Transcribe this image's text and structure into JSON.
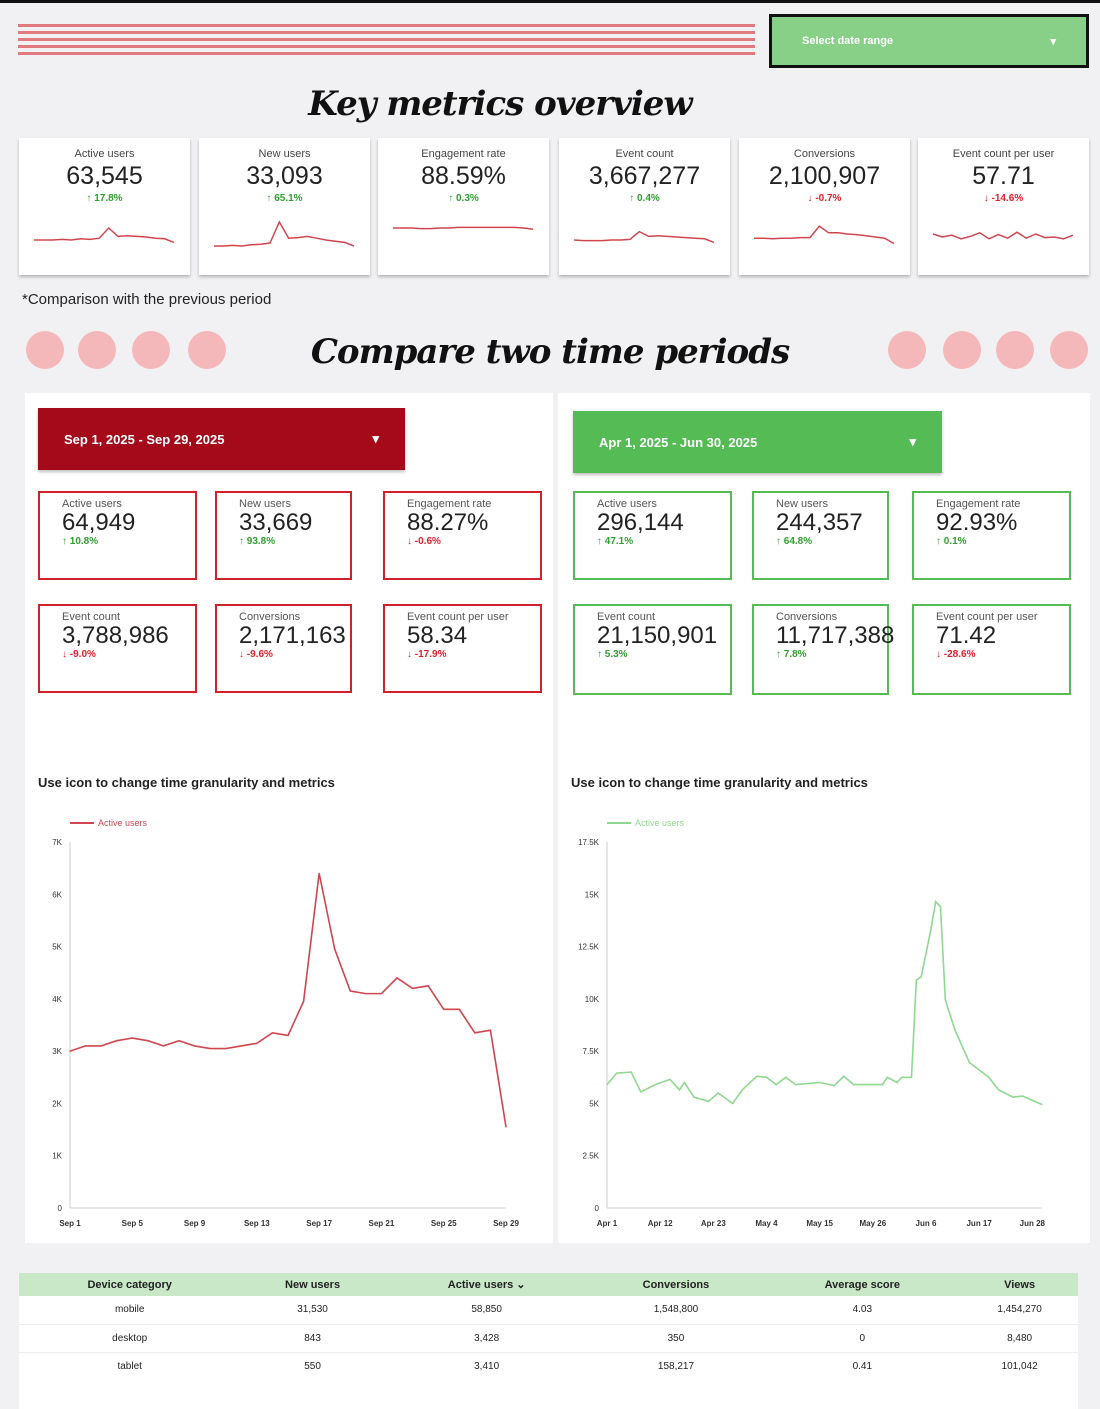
{
  "header": {
    "date_range_label": "Select date range",
    "title": "Key metrics overview",
    "note": "*Comparison with the previous period",
    "compare_title": "Compare two time periods"
  },
  "colors": {
    "red": "#a50a1b",
    "green": "#55bb55",
    "up": "#2e9e2e",
    "down": "#e0202a"
  },
  "kpis": [
    {
      "label": "Active users",
      "value": "63,545",
      "delta": "↑ 17.8%",
      "dir": "up",
      "spark": [
        3,
        3,
        3,
        3.1,
        3,
        3.2,
        3.1,
        3.3,
        5,
        3.6,
        3.7,
        3.6,
        3.5,
        3.3,
        3.2,
        2.6
      ]
    },
    {
      "label": "New users",
      "value": "33,093",
      "delta": "↑ 65.1%",
      "dir": "up",
      "spark": [
        2,
        2,
        2.1,
        2,
        2.2,
        2.3,
        2.5,
        6,
        3.3,
        3.4,
        3.6,
        3.3,
        3,
        2.8,
        2.6,
        2
      ]
    },
    {
      "label": "Engagement rate",
      "value": "88.59%",
      "delta": "↑ 0.3%",
      "dir": "up",
      "spark": [
        5,
        5,
        5,
        4.9,
        4.9,
        5,
        5,
        5.1,
        5.1,
        5.1,
        5.1,
        5.1,
        5.1,
        5.1,
        5,
        4.8
      ]
    },
    {
      "label": "Event count",
      "value": "3,667,277",
      "delta": "↑ 0.4%",
      "dir": "up",
      "spark": [
        3,
        2.9,
        2.9,
        2.9,
        3,
        3,
        3.1,
        4.4,
        3.6,
        3.7,
        3.6,
        3.5,
        3.4,
        3.3,
        3.2,
        2.6
      ]
    },
    {
      "label": "Conversions",
      "value": "2,100,907",
      "delta": "↓ -0.7%",
      "dir": "down",
      "spark": [
        3.3,
        3.3,
        3.2,
        3.3,
        3.3,
        3.4,
        3.4,
        5.3,
        4.2,
        4.2,
        4,
        3.9,
        3.7,
        3.5,
        3.3,
        2.4
      ]
    },
    {
      "label": "Event count per user",
      "value": "57.71",
      "delta": "↓ -14.6%",
      "dir": "down",
      "spark": [
        4,
        3.5,
        3.8,
        3.2,
        3.6,
        4.2,
        3.2,
        3.9,
        3.3,
        4.3,
        3.3,
        4,
        3.4,
        3.5,
        3.2,
        3.8
      ]
    }
  ],
  "periods": [
    {
      "range": "Sep 1, 2025 - Sep 29, 2025",
      "theme": "red",
      "metrics": [
        {
          "label": "Active users",
          "value": "64,949",
          "delta": "↑ 10.8%",
          "dir": "up"
        },
        {
          "label": "New users",
          "value": "33,669",
          "delta": "↑ 93.8%",
          "dir": "up"
        },
        {
          "label": "Engagement rate",
          "value": "88.27%",
          "delta": "↓ -0.6%",
          "dir": "down"
        },
        {
          "label": "Event count",
          "value": "3,788,986",
          "delta": "↓ -9.0%",
          "dir": "down"
        },
        {
          "label": "Conversions",
          "value": "2,171,163",
          "delta": "↓ -9.6%",
          "dir": "down"
        },
        {
          "label": "Event count per user",
          "value": "58.34",
          "delta": "↓ -17.9%",
          "dir": "down"
        }
      ],
      "chart_hint": "Use icon to change time granularity and metrics"
    },
    {
      "range": "Apr 1, 2025 - Jun 30, 2025",
      "theme": "green",
      "metrics": [
        {
          "label": "Active users",
          "value": "296,144",
          "delta": "↑ 47.1%",
          "dir": "up"
        },
        {
          "label": "New users",
          "value": "244,357",
          "delta": "↑ 64.8%",
          "dir": "up"
        },
        {
          "label": "Engagement rate",
          "value": "92.93%",
          "delta": "↑ 0.1%",
          "dir": "up"
        },
        {
          "label": "Event count",
          "value": "21,150,901",
          "delta": "↑ 5.3%",
          "dir": "up"
        },
        {
          "label": "Conversions",
          "value": "11,717,388",
          "delta": "↑ 7.8%",
          "dir": "up"
        },
        {
          "label": "Event count per user",
          "value": "71.42",
          "delta": "↓ -28.6%",
          "dir": "down"
        }
      ],
      "chart_hint": "Use icon to change time granularity and metrics"
    }
  ],
  "chart_data": [
    {
      "type": "line",
      "series": [
        {
          "name": "Active users",
          "color": "#d0464e",
          "points": [
            [
              "Sep 1",
              3000
            ],
            [
              "Sep 2",
              3100
            ],
            [
              "Sep 3",
              3100
            ],
            [
              "Sep 4",
              3200
            ],
            [
              "Sep 5",
              3250
            ],
            [
              "Sep 6",
              3200
            ],
            [
              "Sep 7",
              3100
            ],
            [
              "Sep 8",
              3200
            ],
            [
              "Sep 9",
              3100
            ],
            [
              "Sep 10",
              3050
            ],
            [
              "Sep 11",
              3050
            ],
            [
              "Sep 12",
              3100
            ],
            [
              "Sep 13",
              3150
            ],
            [
              "Sep 14",
              3350
            ],
            [
              "Sep 15",
              3300
            ],
            [
              "Sep 16",
              3950
            ],
            [
              "Sep 17",
              6400
            ],
            [
              "Sep 18",
              4950
            ],
            [
              "Sep 19",
              4150
            ],
            [
              "Sep 20",
              4100
            ],
            [
              "Sep 21",
              4100
            ],
            [
              "Sep 22",
              4400
            ],
            [
              "Sep 23",
              4200
            ],
            [
              "Sep 24",
              4250
            ],
            [
              "Sep 25",
              3800
            ],
            [
              "Sep 26",
              3800
            ],
            [
              "Sep 27",
              3350
            ],
            [
              "Sep 28",
              3400
            ],
            [
              "Sep 29",
              1550
            ]
          ]
        }
      ],
      "ylim": [
        0,
        7000
      ],
      "yticks": [
        "0",
        "1K",
        "2K",
        "3K",
        "4K",
        "5K",
        "6K",
        "7K"
      ],
      "ytick_values": [
        0,
        1000,
        2000,
        3000,
        4000,
        5000,
        6000,
        7000
      ],
      "xticks": [
        "Sep 1",
        "Sep 5",
        "Sep 9",
        "Sep 13",
        "Sep 17",
        "Sep 21",
        "Sep 25",
        "Sep 29"
      ],
      "xrange": [
        "Sep 1",
        "Sep 29"
      ],
      "legend": "top-left",
      "grid": false
    },
    {
      "type": "line",
      "series": [
        {
          "name": "Active users",
          "color": "#8fd88f",
          "points": [
            [
              "Apr 1",
              5900
            ],
            [
              "Apr 3",
              6450
            ],
            [
              "Apr 6",
              6500
            ],
            [
              "Apr 8",
              5550
            ],
            [
              "Apr 11",
              5900
            ],
            [
              "Apr 14",
              6150
            ],
            [
              "Apr 16",
              5650
            ],
            [
              "Apr 17",
              6000
            ],
            [
              "Apr 19",
              5300
            ],
            [
              "Apr 22",
              5100
            ],
            [
              "Apr 24",
              5500
            ],
            [
              "Apr 27",
              5000
            ],
            [
              "Apr 29",
              5650
            ],
            [
              "May 2",
              6300
            ],
            [
              "May 4",
              6250
            ],
            [
              "May 6",
              5900
            ],
            [
              "May 8",
              6250
            ],
            [
              "May 10",
              5900
            ],
            [
              "May 15",
              6000
            ],
            [
              "May 18",
              5850
            ],
            [
              "May 20",
              6300
            ],
            [
              "May 22",
              5900
            ],
            [
              "May 28",
              5900
            ],
            [
              "May 29",
              6250
            ],
            [
              "May 31",
              6000
            ],
            [
              "Jun 1",
              6250
            ],
            [
              "Jun 3",
              6250
            ],
            [
              "Jun 4",
              10900
            ],
            [
              "Jun 5",
              11050
            ],
            [
              "Jun 7",
              13300
            ],
            [
              "Jun 8",
              14650
            ],
            [
              "Jun 9",
              14400
            ],
            [
              "Jun 10",
              9950
            ],
            [
              "Jun 12",
              8500
            ],
            [
              "Jun 15",
              6950
            ],
            [
              "Jun 19",
              6250
            ],
            [
              "Jun 21",
              5650
            ],
            [
              "Jun 24",
              5300
            ],
            [
              "Jun 26",
              5350
            ],
            [
              "Jun 30",
              4950
            ]
          ]
        }
      ],
      "ylim": [
        0,
        17500
      ],
      "yticks": [
        "0",
        "2.5K",
        "5K",
        "7.5K",
        "10K",
        "12.5K",
        "15K",
        "17.5K"
      ],
      "ytick_values": [
        0,
        2500,
        5000,
        7500,
        10000,
        12500,
        15000,
        17500
      ],
      "xticks": [
        "Apr 1",
        "Apr 12",
        "Apr 23",
        "May 4",
        "May 15",
        "May 26",
        "Jun 6",
        "Jun 17",
        "Jun 28"
      ],
      "xrange": [
        "Apr 1",
        "Jun 30"
      ],
      "legend": "top-left",
      "grid": false
    }
  ],
  "table": {
    "columns": [
      "Device category",
      "New users",
      "Active users ⌄",
      "Conversions",
      "Average score",
      "Views"
    ],
    "rows": [
      [
        "mobile",
        "31,530",
        "58,850",
        "1,548,800",
        "4.03",
        "1,454,270"
      ],
      [
        "desktop",
        "843",
        "3,428",
        "350",
        "0",
        "8,480"
      ],
      [
        "tablet",
        "550",
        "3,410",
        "158,217",
        "0.41",
        "101,042"
      ]
    ]
  }
}
